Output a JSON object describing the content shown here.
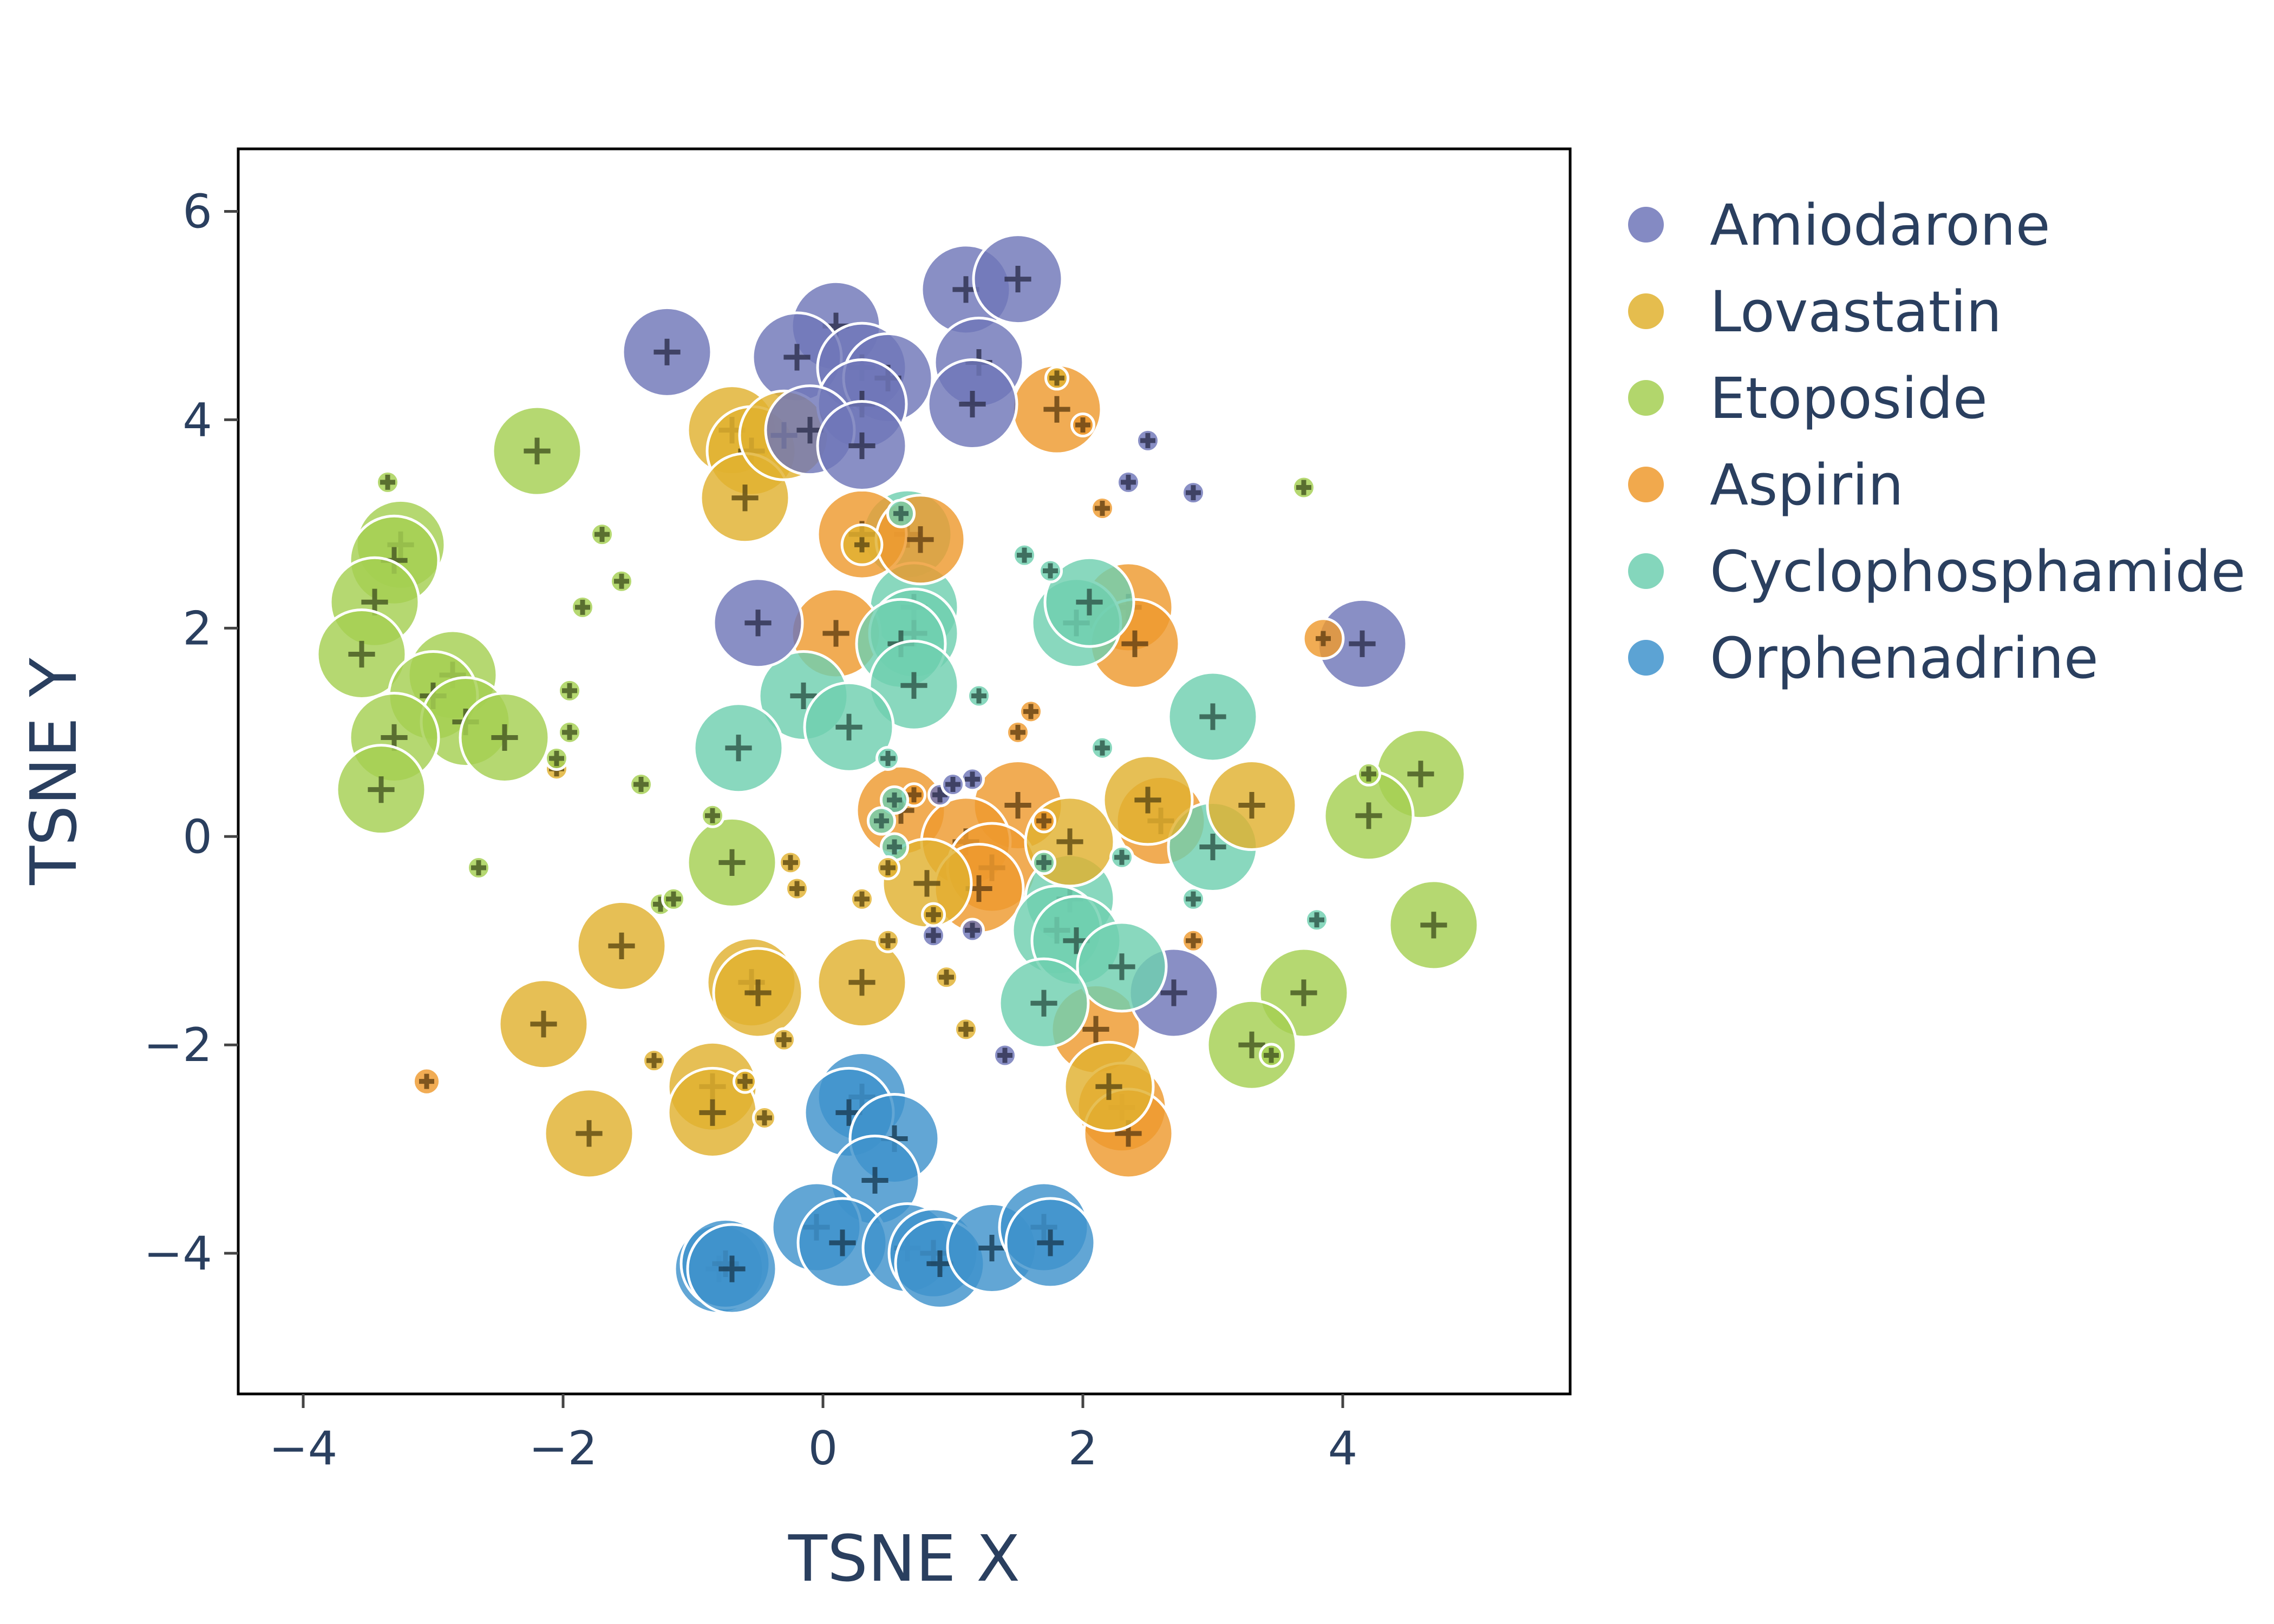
{
  "chart_data": {
    "type": "scatter",
    "xlabel": "TSNE X",
    "ylabel": "TSNE Y",
    "xlim": [
      -4.5,
      5.75
    ],
    "ylim": [
      -5.35,
      6.6
    ],
    "x_ticks": [
      -4,
      -2,
      0,
      2,
      4
    ],
    "y_ticks": [
      -4,
      -2,
      0,
      2,
      4,
      6
    ],
    "x_tick_labels": [
      "−4",
      "−2",
      "0",
      "2",
      "4"
    ],
    "y_tick_labels": [
      "−4",
      "−2",
      "0",
      "2",
      "4",
      "6"
    ],
    "grid": false,
    "legend_position": "top-right (outside)",
    "marker": "circle sized by value with cross marker at center",
    "series": [
      {
        "name": "Amiodarone",
        "color": "#6f76b8",
        "points": [
          {
            "x": -1.2,
            "y": 4.65,
            "s": 1
          },
          {
            "x": 0.1,
            "y": 4.9,
            "s": 1
          },
          {
            "x": -0.2,
            "y": 4.6,
            "s": 1
          },
          {
            "x": 0.3,
            "y": 4.5,
            "s": 1
          },
          {
            "x": 0.5,
            "y": 4.4,
            "s": 1
          },
          {
            "x": 0.3,
            "y": 4.15,
            "s": 1
          },
          {
            "x": -0.1,
            "y": 3.9,
            "s": 1
          },
          {
            "x": 0.3,
            "y": 3.75,
            "s": 1
          },
          {
            "x": 1.1,
            "y": 5.25,
            "s": 1
          },
          {
            "x": 1.5,
            "y": 5.35,
            "s": 1
          },
          {
            "x": 1.2,
            "y": 4.55,
            "s": 1
          },
          {
            "x": 1.15,
            "y": 4.15,
            "s": 1
          },
          {
            "x": -0.5,
            "y": 2.05,
            "s": 1
          },
          {
            "x": 4.15,
            "y": 1.85,
            "s": 1
          },
          {
            "x": 2.7,
            "y": -1.5,
            "s": 1
          },
          {
            "x": 2.5,
            "y": 3.8,
            "s": 0.25
          },
          {
            "x": 2.35,
            "y": 3.4,
            "s": 0.25
          },
          {
            "x": 2.85,
            "y": 3.3,
            "s": 0.25
          },
          {
            "x": 1.15,
            "y": 0.55,
            "s": 0.25
          },
          {
            "x": 0.9,
            "y": 0.4,
            "s": 0.25
          },
          {
            "x": 0.85,
            "y": -0.95,
            "s": 0.25
          },
          {
            "x": 1.4,
            "y": -2.1,
            "s": 0.25
          },
          {
            "x": 1.15,
            "y": -0.9,
            "s": 0.25
          },
          {
            "x": 1.0,
            "y": 0.5,
            "s": 0.25
          }
        ]
      },
      {
        "name": "Lovastatin",
        "color": "#e0b12f",
        "points": [
          {
            "x": -0.7,
            "y": 3.9,
            "s": 1
          },
          {
            "x": -0.55,
            "y": 3.7,
            "s": 1
          },
          {
            "x": -0.6,
            "y": 3.25,
            "s": 1
          },
          {
            "x": -0.3,
            "y": 3.85,
            "s": 1
          },
          {
            "x": -1.55,
            "y": -1.05,
            "s": 1
          },
          {
            "x": -2.15,
            "y": -1.8,
            "s": 1
          },
          {
            "x": -1.8,
            "y": -2.85,
            "s": 1
          },
          {
            "x": -0.85,
            "y": -2.4,
            "s": 1
          },
          {
            "x": -0.85,
            "y": -2.65,
            "s": 1
          },
          {
            "x": -0.55,
            "y": -1.4,
            "s": 1
          },
          {
            "x": -0.5,
            "y": -1.5,
            "s": 1
          },
          {
            "x": 0.3,
            "y": -1.4,
            "s": 1
          },
          {
            "x": 0.8,
            "y": -0.45,
            "s": 1
          },
          {
            "x": 1.9,
            "y": -0.05,
            "s": 1
          },
          {
            "x": 2.5,
            "y": 0.35,
            "s": 1
          },
          {
            "x": 3.3,
            "y": 0.3,
            "s": 1
          },
          {
            "x": 2.2,
            "y": -2.4,
            "s": 1
          },
          {
            "x": 0.3,
            "y": 2.8,
            "s": 0.45
          },
          {
            "x": -2.05,
            "y": 0.65,
            "s": 0.25
          },
          {
            "x": -1.3,
            "y": -2.15,
            "s": 0.25
          },
          {
            "x": -0.3,
            "y": -1.95,
            "s": 0.25
          },
          {
            "x": -0.25,
            "y": -0.25,
            "s": 0.25
          },
          {
            "x": -0.2,
            "y": -0.5,
            "s": 0.25
          },
          {
            "x": 0.3,
            "y": -0.6,
            "s": 0.25
          },
          {
            "x": 0.5,
            "y": -1.0,
            "s": 0.25
          },
          {
            "x": 0.95,
            "y": -1.35,
            "s": 0.25
          },
          {
            "x": 1.1,
            "y": -1.85,
            "s": 0.25
          },
          {
            "x": 0.85,
            "y": -0.75,
            "s": 0.25
          },
          {
            "x": 1.8,
            "y": 4.4,
            "s": 0.25
          },
          {
            "x": -0.6,
            "y": -2.35,
            "s": 0.25
          },
          {
            "x": -0.45,
            "y": -2.7,
            "s": 0.25
          },
          {
            "x": 0.5,
            "y": -0.3,
            "s": 0.25
          }
        ]
      },
      {
        "name": "Etoposide",
        "color": "#a5cf52",
        "points": [
          {
            "x": -2.2,
            "y": 3.7,
            "s": 1
          },
          {
            "x": -3.25,
            "y": 2.8,
            "s": 1
          },
          {
            "x": -3.3,
            "y": 2.65,
            "s": 1
          },
          {
            "x": -3.45,
            "y": 2.25,
            "s": 1
          },
          {
            "x": -3.55,
            "y": 1.75,
            "s": 1
          },
          {
            "x": -2.85,
            "y": 1.55,
            "s": 1
          },
          {
            "x": -3.0,
            "y": 1.35,
            "s": 1
          },
          {
            "x": -2.75,
            "y": 1.1,
            "s": 1
          },
          {
            "x": -2.45,
            "y": 0.95,
            "s": 1
          },
          {
            "x": -3.3,
            "y": 0.95,
            "s": 1
          },
          {
            "x": -3.4,
            "y": 0.45,
            "s": 1
          },
          {
            "x": -0.7,
            "y": -0.25,
            "s": 1
          },
          {
            "x": 4.6,
            "y": 0.6,
            "s": 1
          },
          {
            "x": 4.2,
            "y": 0.2,
            "s": 1
          },
          {
            "x": 4.7,
            "y": -0.85,
            "s": 1
          },
          {
            "x": 3.7,
            "y": -1.5,
            "s": 1
          },
          {
            "x": 3.3,
            "y": -2.0,
            "s": 1
          },
          {
            "x": -3.35,
            "y": 3.4,
            "s": 0.25
          },
          {
            "x": -1.7,
            "y": 2.9,
            "s": 0.25
          },
          {
            "x": -1.55,
            "y": 2.45,
            "s": 0.25
          },
          {
            "x": -1.85,
            "y": 2.2,
            "s": 0.25
          },
          {
            "x": -1.95,
            "y": 1.4,
            "s": 0.25
          },
          {
            "x": -1.95,
            "y": 1.0,
            "s": 0.25
          },
          {
            "x": -2.05,
            "y": 0.75,
            "s": 0.25
          },
          {
            "x": -1.4,
            "y": 0.5,
            "s": 0.25
          },
          {
            "x": -2.65,
            "y": -0.3,
            "s": 0.25
          },
          {
            "x": -1.25,
            "y": -0.65,
            "s": 0.25
          },
          {
            "x": -1.15,
            "y": -0.6,
            "s": 0.25
          },
          {
            "x": -0.85,
            "y": 0.2,
            "s": 0.25
          },
          {
            "x": 3.7,
            "y": 3.35,
            "s": 0.25
          },
          {
            "x": 4.2,
            "y": 0.6,
            "s": 0.25
          },
          {
            "x": 3.45,
            "y": -2.1,
            "s": 0.25
          }
        ]
      },
      {
        "name": "Aspirin",
        "color": "#ee9a2e",
        "points": [
          {
            "x": 1.8,
            "y": 4.1,
            "s": 1
          },
          {
            "x": 0.3,
            "y": 2.9,
            "s": 1
          },
          {
            "x": 0.1,
            "y": 1.95,
            "s": 1
          },
          {
            "x": 0.75,
            "y": 2.85,
            "s": 1
          },
          {
            "x": 2.35,
            "y": 2.2,
            "s": 1
          },
          {
            "x": 2.4,
            "y": 1.85,
            "s": 1
          },
          {
            "x": 0.6,
            "y": 0.25,
            "s": 1
          },
          {
            "x": 1.5,
            "y": 0.3,
            "s": 1
          },
          {
            "x": 1.1,
            "y": -0.05,
            "s": 1
          },
          {
            "x": 1.3,
            "y": -0.3,
            "s": 1
          },
          {
            "x": 1.2,
            "y": -0.5,
            "s": 1
          },
          {
            "x": 2.6,
            "y": 0.15,
            "s": 1
          },
          {
            "x": 2.1,
            "y": -1.85,
            "s": 1
          },
          {
            "x": 2.3,
            "y": -2.6,
            "s": 1
          },
          {
            "x": 2.35,
            "y": -2.85,
            "s": 1
          },
          {
            "x": 2.0,
            "y": 3.95,
            "s": 0.25
          },
          {
            "x": 2.15,
            "y": 3.15,
            "s": 0.25
          },
          {
            "x": 3.85,
            "y": 1.9,
            "s": 0.45
          },
          {
            "x": 1.5,
            "y": 1.0,
            "s": 0.25
          },
          {
            "x": 1.6,
            "y": 1.2,
            "s": 0.25
          },
          {
            "x": 2.85,
            "y": -1.0,
            "s": 0.25
          },
          {
            "x": -3.05,
            "y": -2.35,
            "s": 0.3
          },
          {
            "x": 0.7,
            "y": 0.4,
            "s": 0.25
          },
          {
            "x": 1.7,
            "y": 0.15,
            "s": 0.25
          }
        ]
      },
      {
        "name": "Cyclophosphamide",
        "color": "#6fcfb0",
        "points": [
          {
            "x": 0.65,
            "y": 2.9,
            "s": 1
          },
          {
            "x": 0.7,
            "y": 2.2,
            "s": 1
          },
          {
            "x": 0.7,
            "y": 1.95,
            "s": 1
          },
          {
            "x": 0.6,
            "y": 1.85,
            "s": 1
          },
          {
            "x": 0.7,
            "y": 1.45,
            "s": 1
          },
          {
            "x": -0.15,
            "y": 1.35,
            "s": 1
          },
          {
            "x": 0.2,
            "y": 1.05,
            "s": 1
          },
          {
            "x": -0.65,
            "y": 0.85,
            "s": 1
          },
          {
            "x": 1.95,
            "y": 2.05,
            "s": 1
          },
          {
            "x": 2.05,
            "y": 2.25,
            "s": 1
          },
          {
            "x": 3.0,
            "y": 1.15,
            "s": 1
          },
          {
            "x": 3.0,
            "y": -0.1,
            "s": 1
          },
          {
            "x": 1.9,
            "y": -0.6,
            "s": 1
          },
          {
            "x": 1.8,
            "y": -0.9,
            "s": 1
          },
          {
            "x": 1.95,
            "y": -1.0,
            "s": 1
          },
          {
            "x": 2.3,
            "y": -1.25,
            "s": 1
          },
          {
            "x": 1.7,
            "y": -1.6,
            "s": 1
          },
          {
            "x": 0.6,
            "y": 3.1,
            "s": 0.3
          },
          {
            "x": 1.55,
            "y": 2.7,
            "s": 0.25
          },
          {
            "x": 1.75,
            "y": 2.55,
            "s": 0.25
          },
          {
            "x": 1.2,
            "y": 1.35,
            "s": 0.25
          },
          {
            "x": 0.5,
            "y": 0.75,
            "s": 0.25
          },
          {
            "x": 0.55,
            "y": 0.35,
            "s": 0.3
          },
          {
            "x": 0.45,
            "y": 0.15,
            "s": 0.3
          },
          {
            "x": 0.55,
            "y": -0.1,
            "s": 0.3
          },
          {
            "x": 2.15,
            "y": 0.85,
            "s": 0.25
          },
          {
            "x": 2.3,
            "y": -0.2,
            "s": 0.25
          },
          {
            "x": 2.85,
            "y": -0.6,
            "s": 0.25
          },
          {
            "x": 3.8,
            "y": -0.8,
            "s": 0.25
          },
          {
            "x": 1.7,
            "y": -0.25,
            "s": 0.25
          }
        ]
      },
      {
        "name": "Orphenadrine",
        "color": "#3f93cc",
        "points": [
          {
            "x": 0.3,
            "y": -2.5,
            "s": 1
          },
          {
            "x": 0.2,
            "y": -2.65,
            "s": 1
          },
          {
            "x": 0.55,
            "y": -2.9,
            "s": 1
          },
          {
            "x": 0.4,
            "y": -3.3,
            "s": 1
          },
          {
            "x": -0.05,
            "y": -3.75,
            "s": 1
          },
          {
            "x": 0.15,
            "y": -3.9,
            "s": 1
          },
          {
            "x": 0.65,
            "y": -3.95,
            "s": 1
          },
          {
            "x": 0.85,
            "y": -4.0,
            "s": 1
          },
          {
            "x": 0.9,
            "y": -4.1,
            "s": 1
          },
          {
            "x": 1.3,
            "y": -3.95,
            "s": 1
          },
          {
            "x": 1.7,
            "y": -3.75,
            "s": 1
          },
          {
            "x": 1.75,
            "y": -3.9,
            "s": 1
          },
          {
            "x": -0.8,
            "y": -4.15,
            "s": 1
          },
          {
            "x": -0.75,
            "y": -4.1,
            "s": 1
          },
          {
            "x": -0.7,
            "y": -4.15,
            "s": 1
          }
        ]
      }
    ]
  }
}
